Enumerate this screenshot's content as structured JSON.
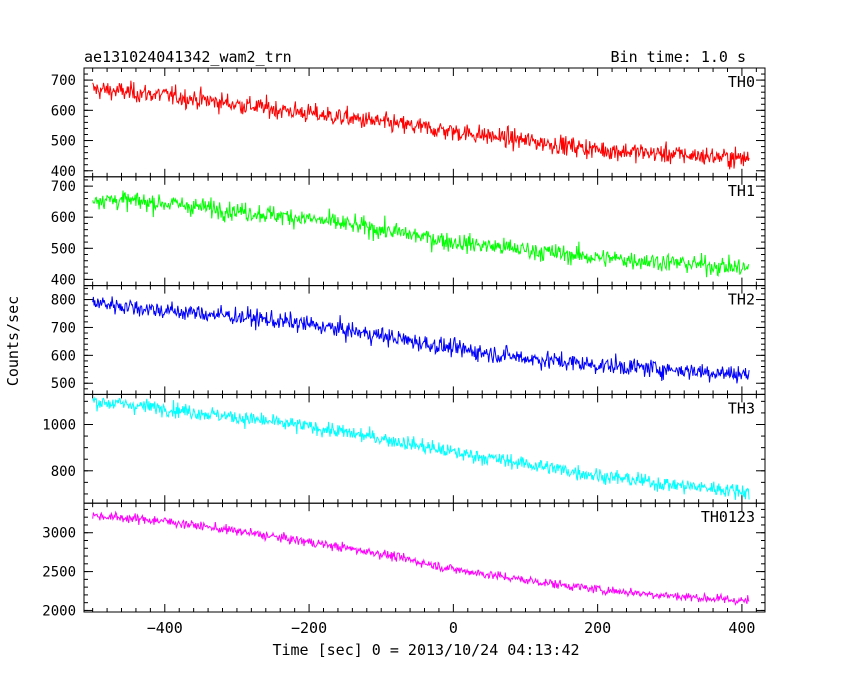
{
  "chart_data": {
    "type": "line",
    "title": "ae131024041342_wam2_trn",
    "bin_time_label": "Bin time: 1.0 s",
    "xlabel": "Time [sec] 0 = 2013/10/24 04:13:42",
    "ylabel": "Counts/sec",
    "xlim": [
      -512,
      432
    ],
    "x_ticks": [
      -400,
      -200,
      0,
      200,
      400
    ],
    "x_tick_labels": [
      "−400",
      "−200",
      "0",
      "200",
      "400"
    ],
    "x_range": [
      -500,
      410
    ],
    "grid": false,
    "legend": "none",
    "panels": [
      {
        "name": "TH0",
        "color": "#ff0000",
        "ylim": [
          380,
          740
        ],
        "y_ticks": [
          400,
          500,
          600,
          700
        ],
        "y_tick_labels": [
          "400",
          "500",
          "600",
          "700"
        ],
        "trend": [
          [
            -500,
            670
          ],
          [
            -400,
            650
          ],
          [
            -300,
            620
          ],
          [
            -200,
            590
          ],
          [
            -100,
            560
          ],
          [
            0,
            530
          ],
          [
            100,
            500
          ],
          [
            200,
            470
          ],
          [
            300,
            455
          ],
          [
            410,
            440
          ]
        ],
        "noise": 30
      },
      {
        "name": "TH1",
        "color": "#00ff00",
        "ylim": [
          380,
          730
        ],
        "y_ticks": [
          400,
          500,
          600,
          700
        ],
        "y_tick_labels": [
          "400",
          "500",
          "600",
          "700"
        ],
        "trend": [
          [
            -500,
            660
          ],
          [
            -400,
            645
          ],
          [
            -300,
            620
          ],
          [
            -200,
            595
          ],
          [
            -100,
            560
          ],
          [
            0,
            520
          ],
          [
            100,
            495
          ],
          [
            200,
            470
          ],
          [
            300,
            455
          ],
          [
            410,
            435
          ]
        ],
        "noise": 28
      },
      {
        "name": "TH2",
        "color": "#0000ff",
        "ylim": [
          460,
          850
        ],
        "y_ticks": [
          500,
          600,
          700,
          800
        ],
        "y_tick_labels": [
          "500",
          "600",
          "700",
          "800"
        ],
        "trend": [
          [
            -500,
            790
          ],
          [
            -400,
            760
          ],
          [
            -300,
            740
          ],
          [
            -200,
            710
          ],
          [
            -100,
            670
          ],
          [
            0,
            625
          ],
          [
            100,
            590
          ],
          [
            200,
            565
          ],
          [
            300,
            550
          ],
          [
            410,
            530
          ]
        ],
        "noise": 30
      },
      {
        "name": "TH3",
        "color": "#00ffff",
        "ylim": [
          660,
          1130
        ],
        "y_ticks": [
          800,
          1000
        ],
        "y_tick_labels": [
          "800",
          "1000"
        ],
        "trend": [
          [
            -500,
            1100
          ],
          [
            -400,
            1070
          ],
          [
            -300,
            1030
          ],
          [
            -200,
            990
          ],
          [
            -100,
            940
          ],
          [
            0,
            880
          ],
          [
            100,
            830
          ],
          [
            200,
            780
          ],
          [
            300,
            740
          ],
          [
            410,
            710
          ]
        ],
        "noise": 30
      },
      {
        "name": "TH0123",
        "color": "#ff00ff",
        "ylim": [
          1980,
          3380
        ],
        "y_ticks": [
          2000,
          2500,
          3000
        ],
        "y_tick_labels": [
          "2000",
          "2500",
          "3000"
        ],
        "trend": [
          [
            -500,
            3220
          ],
          [
            -400,
            3150
          ],
          [
            -300,
            3020
          ],
          [
            -200,
            2880
          ],
          [
            -100,
            2730
          ],
          [
            0,
            2530
          ],
          [
            100,
            2390
          ],
          [
            200,
            2270
          ],
          [
            300,
            2190
          ],
          [
            410,
            2120
          ]
        ],
        "noise": 55
      }
    ]
  }
}
